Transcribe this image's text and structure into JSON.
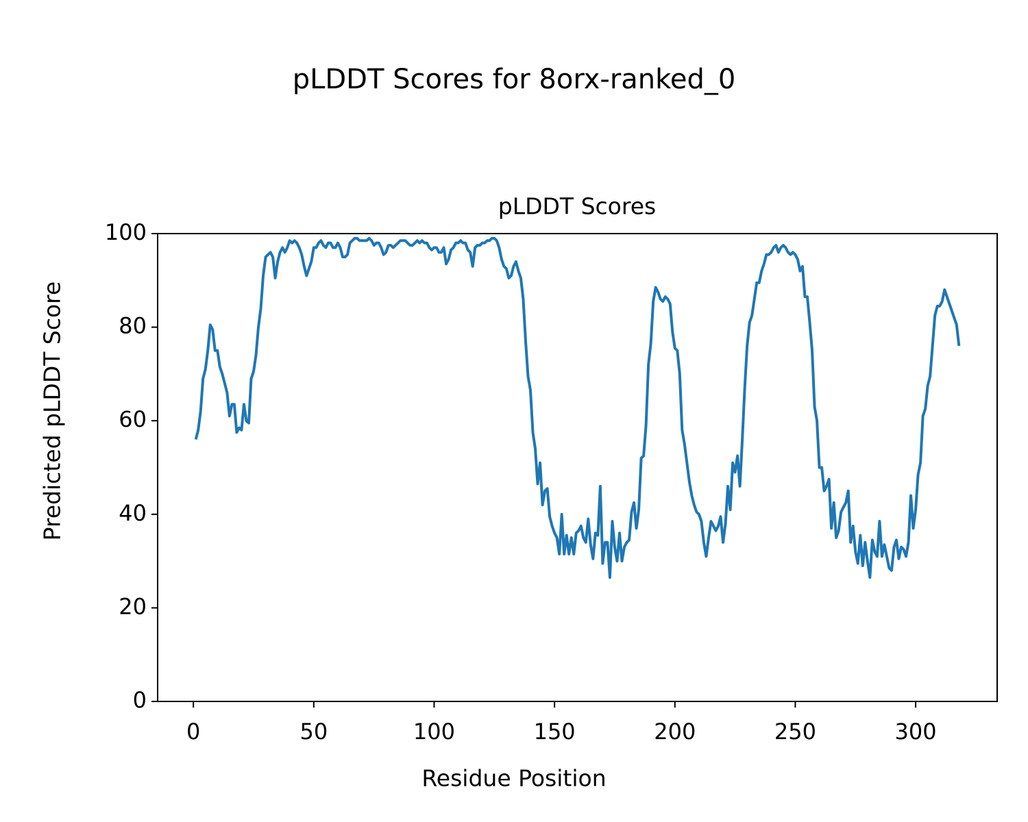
{
  "chart_data": {
    "type": "line",
    "title": "pLDDT Scores for 8orx-ranked_0",
    "subtitle": "pLDDT Scores",
    "x_label": "Residue Position",
    "y_label": "Predicted pLDDT Score",
    "color": "#1f77b4",
    "xlim": [
      -14.85,
      333.85
    ],
    "ylim": [
      0,
      100
    ],
    "xticks": [
      0,
      50,
      100,
      150,
      200,
      250,
      300
    ],
    "yticks": [
      0,
      20,
      40,
      60,
      80,
      100
    ],
    "x": [
      1,
      2,
      3,
      4,
      5,
      6,
      7,
      8,
      9,
      10,
      11,
      12,
      13,
      14,
      15,
      16,
      17,
      18,
      19,
      20,
      21,
      22,
      23,
      24,
      25,
      26,
      27,
      28,
      29,
      30,
      31,
      32,
      33,
      34,
      35,
      36,
      37,
      38,
      39,
      40,
      41,
      42,
      43,
      44,
      45,
      46,
      47,
      48,
      49,
      50,
      51,
      52,
      53,
      54,
      55,
      56,
      57,
      58,
      59,
      60,
      61,
      62,
      63,
      64,
      65,
      66,
      67,
      68,
      69,
      70,
      71,
      72,
      73,
      74,
      75,
      76,
      77,
      78,
      79,
      80,
      81,
      82,
      83,
      84,
      85,
      86,
      87,
      88,
      89,
      90,
      91,
      92,
      93,
      94,
      95,
      96,
      97,
      98,
      99,
      100,
      101,
      102,
      103,
      104,
      105,
      106,
      107,
      108,
      109,
      110,
      111,
      112,
      113,
      114,
      115,
      116,
      117,
      118,
      119,
      120,
      121,
      122,
      123,
      124,
      125,
      126,
      127,
      128,
      129,
      130,
      131,
      132,
      133,
      134,
      135,
      136,
      137,
      138,
      139,
      140,
      141,
      142,
      143,
      144,
      145,
      146,
      147,
      148,
      149,
      150,
      151,
      152,
      153,
      154,
      155,
      156,
      157,
      158,
      159,
      160,
      161,
      162,
      163,
      164,
      165,
      166,
      167,
      168,
      169,
      170,
      171,
      172,
      173,
      174,
      175,
      176,
      177,
      178,
      179,
      180,
      181,
      182,
      183,
      184,
      185,
      186,
      187,
      188,
      189,
      190,
      191,
      192,
      193,
      194,
      195,
      196,
      197,
      198,
      199,
      200,
      201,
      202,
      203,
      204,
      205,
      206,
      207,
      208,
      209,
      210,
      211,
      212,
      213,
      214,
      215,
      216,
      217,
      218,
      219,
      220,
      221,
      222,
      223,
      224,
      225,
      226,
      227,
      228,
      229,
      230,
      231,
      232,
      233,
      234,
      235,
      236,
      237,
      238,
      239,
      240,
      241,
      242,
      243,
      244,
      245,
      246,
      247,
      248,
      249,
      250,
      251,
      252,
      253,
      254,
      255,
      256,
      257,
      258,
      259,
      260,
      261,
      262,
      263,
      264,
      265,
      266,
      267,
      268,
      269,
      270,
      271,
      272,
      273,
      274,
      275,
      276,
      277,
      278,
      279,
      280,
      281,
      282,
      283,
      284,
      285,
      286,
      287,
      288,
      289,
      290,
      291,
      292,
      293,
      294,
      295,
      296,
      297,
      298,
      299,
      300,
      301,
      302,
      303,
      304,
      305,
      306,
      307,
      308,
      309,
      310,
      311,
      312,
      313,
      314,
      315,
      316,
      317,
      318
    ],
    "values": [
      56,
      58,
      62,
      69,
      71,
      75,
      80.5,
      79.5,
      75,
      75,
      71.5,
      70,
      68,
      66,
      61,
      63.5,
      63.5,
      57.5,
      58.5,
      58,
      63.5,
      60,
      59.5,
      69,
      70.5,
      74,
      80,
      84,
      91,
      95,
      95.5,
      96,
      95,
      90.5,
      94,
      96,
      97,
      96,
      97,
      98.5,
      98,
      98.5,
      98,
      97,
      95.5,
      93,
      91,
      92.5,
      94,
      97,
      97,
      98,
      98.5,
      97.5,
      97,
      98,
      98,
      97,
      97,
      98,
      97,
      95,
      95,
      95.5,
      98,
      98.5,
      99,
      99,
      98.5,
      98.5,
      98.5,
      98.5,
      99,
      98.5,
      97.5,
      98,
      98,
      97,
      95.5,
      96,
      97.5,
      97.5,
      97,
      97.5,
      98,
      98.5,
      98.5,
      98.5,
      98,
      97.5,
      97.5,
      98,
      98.5,
      98,
      98.5,
      98,
      98,
      97,
      96.5,
      97,
      97,
      96,
      96,
      97,
      93.5,
      94.5,
      96.5,
      97,
      98,
      98,
      98.5,
      98,
      98,
      96.5,
      96,
      93,
      97,
      97.5,
      97.5,
      98,
      98,
      98.5,
      98.5,
      99,
      99,
      98.5,
      97,
      94.5,
      93,
      92.5,
      90.5,
      91,
      93,
      94,
      92,
      90.5,
      86,
      77,
      69.5,
      66.5,
      57.5,
      54,
      46.5,
      51,
      42,
      45,
      45.5,
      39.5,
      37.5,
      36,
      35,
      31.5,
      40,
      31.5,
      35.5,
      31.5,
      35,
      31.5,
      36,
      36.5,
      37.5,
      35,
      34,
      39,
      33.5,
      30.5,
      36,
      35.5,
      46,
      29.5,
      34,
      34,
      26.5,
      38.5,
      33,
      30,
      36,
      30,
      33,
      34,
      34.5,
      40.5,
      42.5,
      37,
      41,
      52,
      52.5,
      59,
      72,
      76.5,
      85.5,
      88.5,
      87.5,
      86,
      85.5,
      86.5,
      86,
      85,
      79,
      75.5,
      75,
      70,
      58,
      55,
      51,
      47,
      44,
      42,
      40.5,
      40,
      38.5,
      34,
      31,
      35,
      38.5,
      37.5,
      36.5,
      37.5,
      39.5,
      34,
      38,
      46,
      41,
      51,
      49,
      52.5,
      46,
      56,
      67,
      76,
      81,
      82.5,
      86,
      89.5,
      89.5,
      92,
      93.5,
      95.5,
      95.5,
      96,
      97,
      97.5,
      96,
      97,
      97.5,
      97,
      96,
      95.5,
      96,
      95.5,
      94.5,
      92,
      93,
      86.5,
      86.5,
      81,
      75,
      63,
      60,
      50,
      50,
      45,
      46,
      47.5,
      37,
      42.5,
      35,
      36.5,
      40.5,
      41.5,
      42.5,
      45,
      34,
      37.5,
      32,
      29.5,
      35.5,
      29,
      34,
      30,
      26.5,
      34.5,
      32,
      31,
      38.5,
      31,
      33.5,
      31,
      28.5,
      28,
      33,
      34.5,
      30.5,
      33,
      32.5,
      31,
      34,
      44,
      37,
      41,
      48.5,
      51,
      61,
      62.5,
      67.5,
      69.5,
      76,
      82.5,
      84.5,
      84.5,
      85.5,
      88,
      86.5,
      85,
      83.5,
      82,
      80.5,
      76
    ]
  }
}
